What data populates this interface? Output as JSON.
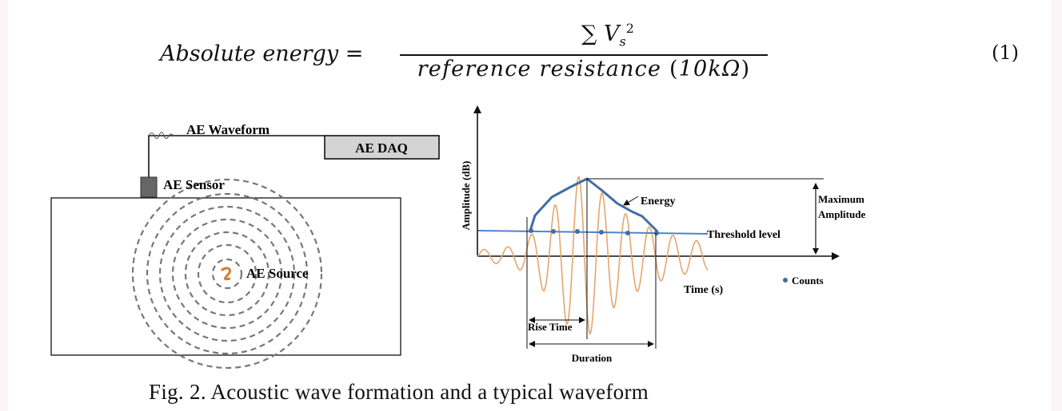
{
  "equation": {
    "lhs": "Absolute energy",
    "equals": "=",
    "numerator_sigma": "∑",
    "numerator_var": "V",
    "numerator_sub": "s",
    "numerator_sup": "2",
    "denominator_text": "reference resistance ",
    "denominator_paren_open": "(",
    "denominator_value": "10kΩ",
    "denominator_paren_close": ")",
    "number": "(1)"
  },
  "left_diagram": {
    "waveform_label": "AE Waveform",
    "daq_label": "AE DAQ",
    "sensor_label": "AE Sensor",
    "source_label": "AE Source"
  },
  "waveform_plot": {
    "y_axis_label": "Amplitude (dB)",
    "x_axis_label": "Time (s)",
    "energy_label": "Energy",
    "threshold_label": "Threshold level",
    "max_amp_label_line1": "Maximum",
    "max_amp_label_line2": "Amplitude",
    "counts_label": "Counts",
    "rise_time_label": "Rise Time",
    "duration_label": "Duration"
  },
  "colors": {
    "wave": "#e7a56c",
    "envelope": "#3f6ea6",
    "threshold": "#4f86c2",
    "count_dot": "#3f6ea6",
    "box_fill": "#d4d4d4",
    "sensor_fill": "#666666",
    "ring": "#777777"
  },
  "caption": "Fig. 2. Acoustic wave formation and a typical waveform"
}
